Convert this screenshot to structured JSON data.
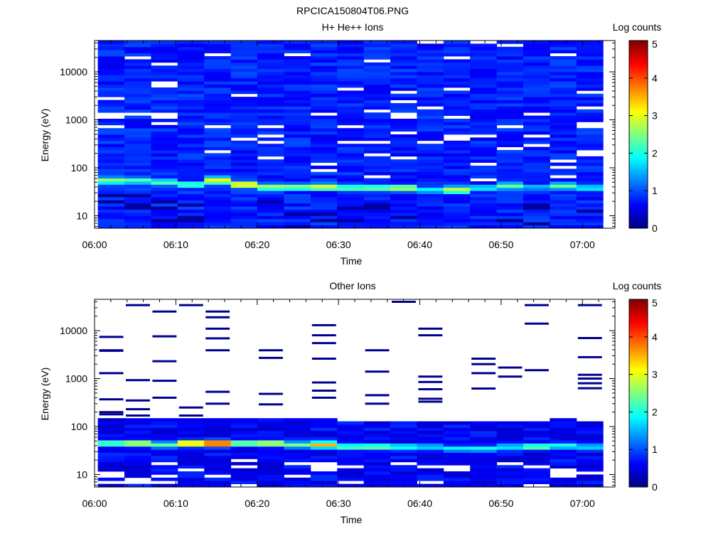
{
  "figure_title": "RPCICA150804T06.PNG",
  "chart_data": [
    {
      "type": "heatmap",
      "title": "H+ He++ Ions",
      "xlabel": "Time",
      "ylabel": "Energy (eV)",
      "x_ticks": [
        "06:00",
        "06:10",
        "06:20",
        "06:30",
        "06:40",
        "06:50",
        "07:00"
      ],
      "y_ticks": [
        "10",
        "100",
        "1000",
        "10000"
      ],
      "y_scale": "log",
      "colorbar_label": "Log counts",
      "colorbar_ticks": [
        "0",
        "1",
        "2",
        "3",
        "4",
        "5"
      ],
      "colorbar_range": [
        0,
        5
      ],
      "cmap": [
        "#00007f",
        "#0000ff",
        "#007fff",
        "#00ffff",
        "#7fff7f",
        "#ffff00",
        "#ff7f00",
        "#ff0000",
        "#7f0000"
      ],
      "panel_columns": 19,
      "peak_energy": [
        55,
        55,
        50,
        45,
        55,
        45,
        40,
        40,
        40,
        38,
        38,
        38,
        35,
        35,
        38,
        42,
        40,
        42,
        38
      ],
      "peak_value": [
        2.6,
        2.3,
        2.3,
        2.3,
        3.2,
        3.3,
        2.7,
        2.6,
        3.0,
        2.4,
        2.5,
        2.8,
        1.9,
        2.9,
        1.9,
        2.4,
        1.6,
        2.4,
        1.9
      ]
    },
    {
      "type": "heatmap",
      "title": "Other Ions",
      "xlabel": "Time",
      "ylabel": "Energy (eV)",
      "x_ticks": [
        "06:00",
        "06:10",
        "06:20",
        "06:30",
        "06:40",
        "06:50",
        "07:00"
      ],
      "y_ticks": [
        "10",
        "100",
        "1000",
        "10000"
      ],
      "y_scale": "log",
      "colorbar_label": "Log counts",
      "colorbar_ticks": [
        "0",
        "1",
        "2",
        "3",
        "4",
        "5"
      ],
      "colorbar_range": [
        0,
        5
      ],
      "panel_columns": 19,
      "peak_energy": [
        45,
        45,
        42,
        45,
        45,
        45,
        45,
        42,
        42,
        38,
        38,
        38,
        38,
        35,
        35,
        38,
        38,
        40,
        38
      ],
      "peak_value": [
        2.5,
        3.0,
        2.4,
        3.6,
        4.4,
        2.7,
        3.0,
        2.5,
        3.5,
        2.4,
        2.5,
        2.1,
        1.8,
        1.9,
        2.0,
        1.9,
        2.5,
        2.1,
        1.8
      ],
      "sparse_lines": [
        [
          7400,
          3800,
          3900,
          1300,
          370,
          200,
          180
        ],
        [
          34000,
          930,
          350,
          230,
          170
        ],
        [
          25000,
          7600,
          2300,
          900,
          400
        ],
        [
          34000,
          250,
          170
        ],
        [
          25000,
          19000,
          11000,
          6900,
          3900,
          530,
          300
        ],
        [],
        [
          3900,
          2700,
          480,
          290
        ],
        [],
        [
          13000,
          8000,
          5500,
          2600,
          830,
          560,
          400
        ],
        [],
        [
          3900,
          1400,
          450,
          300
        ],
        [
          40000
        ],
        [
          11000,
          8000,
          1100,
          850,
          600,
          380,
          330
        ],
        [],
        [
          2600,
          2000,
          1300,
          620
        ],
        [
          1700,
          1100
        ],
        [
          34000,
          14000,
          1500
        ],
        [],
        [
          34000,
          7000,
          2800,
          1200,
          1000,
          800,
          630
        ]
      ]
    }
  ]
}
